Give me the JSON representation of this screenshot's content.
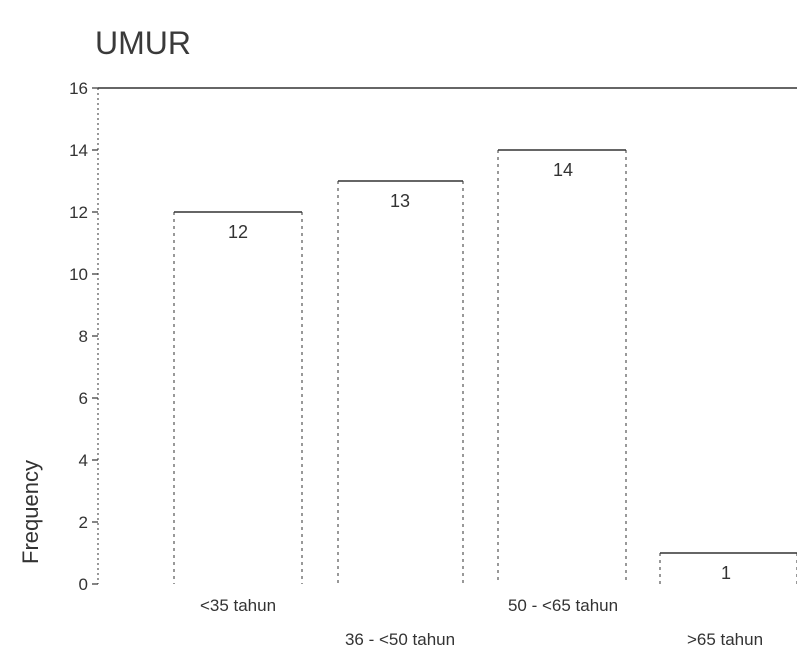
{
  "chart_data": {
    "type": "bar",
    "title": "UMUR",
    "xlabel": "",
    "ylabel": "Frequency",
    "categories": [
      "<35 tahun",
      "36 - <50 tahun",
      "50 - <65 tahun",
      ">65 tahun"
    ],
    "values": [
      12,
      13,
      14,
      1
    ],
    "data_labels": [
      "12",
      "13",
      "14",
      "1"
    ],
    "ylim": [
      0,
      16
    ],
    "yticks": [
      0,
      2,
      4,
      6,
      8,
      10,
      12,
      14,
      16
    ],
    "yticklabels": [
      "0",
      "2",
      "4",
      "6",
      "8",
      "10",
      "12",
      "14",
      "16"
    ],
    "grid": false,
    "legend": "none",
    "colors": {
      "bar_fill": "#ffffff",
      "bar_stroke": "#333333",
      "axis": "#333333"
    }
  }
}
